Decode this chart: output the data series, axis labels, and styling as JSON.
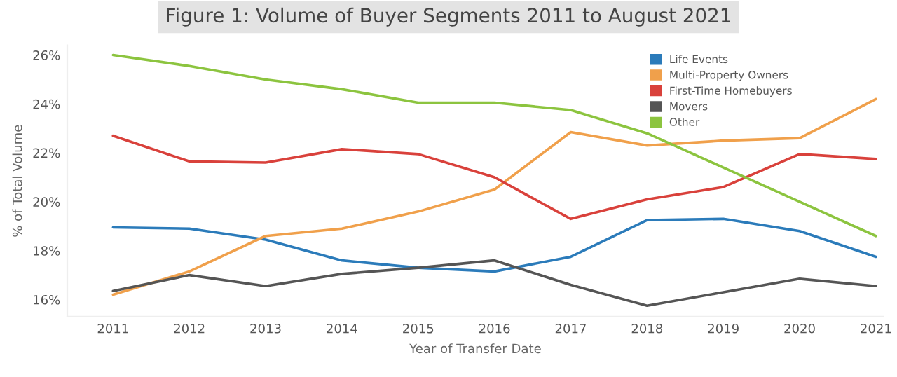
{
  "chart_data": {
    "type": "line",
    "title": "Figure 1: Volume of Buyer Segments 2011 to August 2021",
    "xlabel": "Year of Transfer Date",
    "ylabel": "% of Total Volume",
    "categories": [
      "2011",
      "2012",
      "2013",
      "2014",
      "2015",
      "2016",
      "2017",
      "2018",
      "2019",
      "2020",
      "2021"
    ],
    "series": [
      {
        "name": "Life Events",
        "color": "#2b7bba",
        "values": [
          18.95,
          18.9,
          18.45,
          17.6,
          17.3,
          17.15,
          17.75,
          19.25,
          19.3,
          18.8,
          17.75
        ]
      },
      {
        "name": "Multi-Property Owners",
        "color": "#f0a04b",
        "values": [
          16.2,
          17.15,
          18.6,
          18.9,
          19.6,
          20.5,
          22.85,
          22.3,
          22.5,
          22.6,
          24.2
        ]
      },
      {
        "name": "First-Time Homebuyers",
        "color": "#d9413b",
        "values": [
          22.7,
          21.65,
          21.6,
          22.15,
          21.95,
          21.0,
          19.3,
          20.1,
          20.6,
          21.95,
          21.75
        ]
      },
      {
        "name": "Movers",
        "color": "#555555",
        "values": [
          16.35,
          17.0,
          16.55,
          17.05,
          17.3,
          17.6,
          16.6,
          15.75,
          16.3,
          16.85,
          16.55
        ]
      },
      {
        "name": "Other",
        "color": "#8cc43f",
        "values": [
          26.0,
          25.55,
          25.0,
          24.6,
          24.05,
          24.05,
          23.75,
          22.8,
          21.4,
          20.0,
          18.6
        ]
      }
    ],
    "ylim": [
      15.3,
      26.4
    ],
    "yticks": [
      {
        "value": 16,
        "label": "16%"
      },
      {
        "value": 18,
        "label": "18%"
      },
      {
        "value": 20,
        "label": "20%"
      },
      {
        "value": 22,
        "label": "22%"
      },
      {
        "value": 24,
        "label": "24%"
      },
      {
        "value": 26,
        "label": "26%"
      }
    ],
    "grid": false,
    "legend": "top right",
    "marker": "none",
    "line_style": "solid"
  }
}
